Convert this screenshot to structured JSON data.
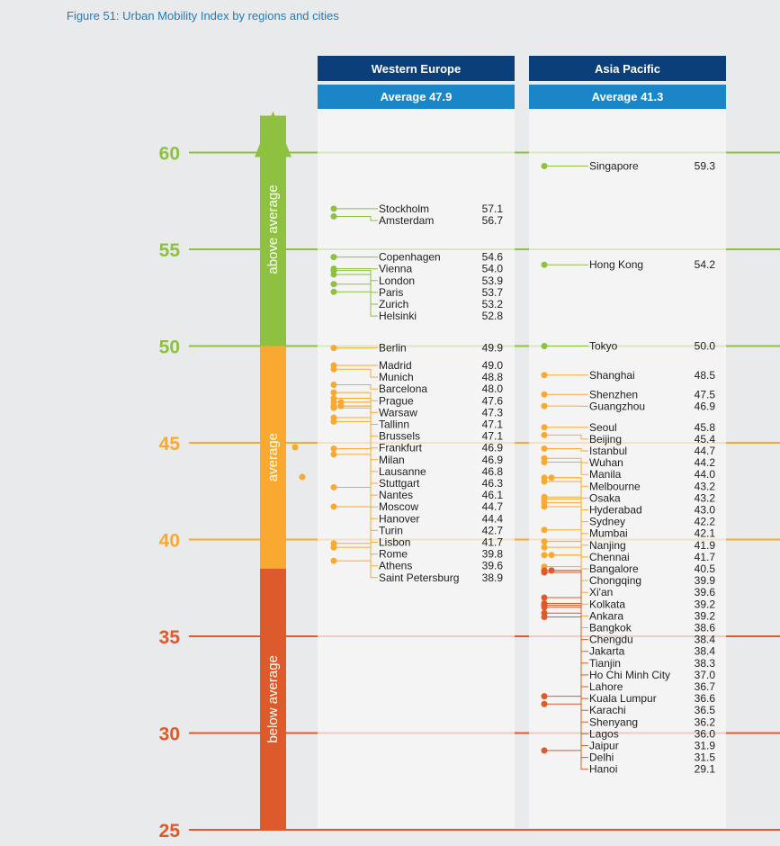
{
  "chart_data": {
    "type": "dot-strip",
    "title": "Figure 51: Urban Mobility Index by regions and cities",
    "ylim": [
      25,
      60
    ],
    "yticks": [
      25,
      30,
      35,
      40,
      45,
      50,
      55,
      60
    ],
    "bands": [
      {
        "label": "above average",
        "from": 50,
        "to": 60,
        "color": "#8dc13f",
        "arrow": true
      },
      {
        "label": "average",
        "from": 38.5,
        "to": 50,
        "color": "#f9a930"
      },
      {
        "label": "below average",
        "from": 25,
        "to": 38.5,
        "color": "#dc5a2b"
      }
    ],
    "regions": [
      {
        "name": "Western Europe",
        "average_label": "Average 47.9",
        "cities": [
          {
            "name": "Stockholm",
            "value": "57.1"
          },
          {
            "name": "Amsterdam",
            "value": "56.7"
          },
          {
            "name": "Copenhagen",
            "value": "54.6"
          },
          {
            "name": "Vienna",
            "value": "54.0"
          },
          {
            "name": "London",
            "value": "53.9"
          },
          {
            "name": "Paris",
            "value": "53.7"
          },
          {
            "name": "Zurich",
            "value": "53.2"
          },
          {
            "name": "Helsinki",
            "value": "52.8"
          },
          {
            "name": "Berlin",
            "value": "49.9"
          },
          {
            "name": "Madrid",
            "value": "49.0"
          },
          {
            "name": "Munich",
            "value": "48.8"
          },
          {
            "name": "Barcelona",
            "value": "48.0"
          },
          {
            "name": "Prague",
            "value": "47.6"
          },
          {
            "name": "Warsaw",
            "value": "47.3"
          },
          {
            "name": "Tallinn",
            "value": "47.1"
          },
          {
            "name": "Brussels",
            "value": "47.1"
          },
          {
            "name": "Frankfurt",
            "value": "46.9"
          },
          {
            "name": "Milan",
            "value": "46.9"
          },
          {
            "name": "Lausanne",
            "value": "46.8"
          },
          {
            "name": "Stuttgart",
            "value": "46.3"
          },
          {
            "name": "Nantes",
            "value": "46.1"
          },
          {
            "name": "Moscow",
            "value": "44.7"
          },
          {
            "name": "Hanover",
            "value": "44.4"
          },
          {
            "name": "Turin",
            "value": "42.7"
          },
          {
            "name": "Lisbon",
            "value": "41.7"
          },
          {
            "name": "Rome",
            "value": "39.8"
          },
          {
            "name": "Athens",
            "value": "39.6"
          },
          {
            "name": "Saint Petersburg",
            "value": "38.9"
          }
        ]
      },
      {
        "name": "Asia Pacific",
        "average_label": "Average 41.3",
        "cities": [
          {
            "name": "Singapore",
            "value": "59.3"
          },
          {
            "name": "Hong Kong",
            "value": "54.2"
          },
          {
            "name": "Tokyo",
            "value": "50.0"
          },
          {
            "name": "Shanghai",
            "value": "48.5"
          },
          {
            "name": "Shenzhen",
            "value": "47.5"
          },
          {
            "name": "Guangzhou",
            "value": "46.9"
          },
          {
            "name": "Seoul",
            "value": "45.8"
          },
          {
            "name": "Beijing",
            "value": "45.4"
          },
          {
            "name": "Istanbul",
            "value": "44.7"
          },
          {
            "name": "Wuhan",
            "value": "44.2"
          },
          {
            "name": "Manila",
            "value": "44.0"
          },
          {
            "name": "Melbourne",
            "value": "43.2"
          },
          {
            "name": "Osaka",
            "value": "43.2"
          },
          {
            "name": "Hyderabad",
            "value": "43.0"
          },
          {
            "name": "Sydney",
            "value": "42.2"
          },
          {
            "name": "Mumbai",
            "value": "42.1"
          },
          {
            "name": "Nanjing",
            "value": "41.9"
          },
          {
            "name": "Chennai",
            "value": "41.7"
          },
          {
            "name": "Bangalore",
            "value": "40.5"
          },
          {
            "name": "Chongqing",
            "value": "39.9"
          },
          {
            "name": "Xi'an",
            "value": "39.6"
          },
          {
            "name": "Kolkata",
            "value": "39.2"
          },
          {
            "name": "Ankara",
            "value": "39.2"
          },
          {
            "name": "Bangkok",
            "value": "38.6"
          },
          {
            "name": "Chengdu",
            "value": "38.4"
          },
          {
            "name": "Jakarta",
            "value": "38.4"
          },
          {
            "name": "Tianjin",
            "value": "38.3"
          },
          {
            "name": "Ho Chi Minh City",
            "value": "37.0"
          },
          {
            "name": "Lahore",
            "value": "36.7"
          },
          {
            "name": "Kuala Lumpur",
            "value": "36.6"
          },
          {
            "name": "Karachi",
            "value": "36.5"
          },
          {
            "name": "Shenyang",
            "value": "36.2"
          },
          {
            "name": "Lagos",
            "value": "36.0"
          },
          {
            "name": "Jaipur",
            "value": "31.9"
          },
          {
            "name": "Delhi",
            "value": "31.5"
          },
          {
            "name": "Hanoi",
            "value": "29.1"
          }
        ]
      }
    ],
    "colors": {
      "above": "#8dc13f",
      "average": "#f9a930",
      "below": "#dc5a2b",
      "header_dark": "#0b3f7a",
      "header_light": "#1a86c8"
    }
  }
}
